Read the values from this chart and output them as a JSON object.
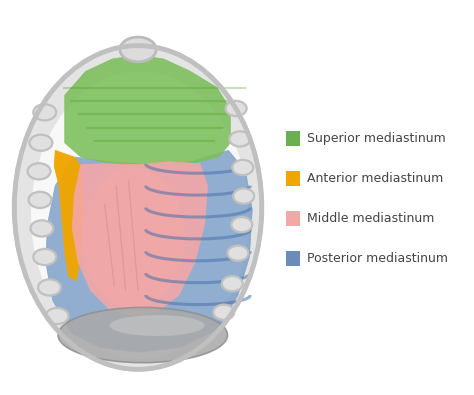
{
  "background_color": "#ffffff",
  "legend_items": [
    {
      "label": "Superior mediastinum",
      "color": "#6ab04c"
    },
    {
      "label": "Anterior mediastinum",
      "color": "#f0a500"
    },
    {
      "label": "Middle mediastinum",
      "color": "#f4a7a7"
    },
    {
      "label": "Posterior mediastinum",
      "color": "#6b8cba"
    }
  ],
  "chest_fill": "#e4e4e4",
  "chest_edge": "#c8c8c8",
  "superior_color": "#7bbf5a",
  "anterior_color": "#f0a500",
  "middle_color": "#f4a7a7",
  "posterior_color": "#7a9ec8",
  "diaphragm_color": "#aaaaaa",
  "rib_fill": "#e0e0e0",
  "rib_edge": "#c0c0c0",
  "text_color": "#444444",
  "figsize": [
    4.74,
    3.95
  ],
  "dpi": 100
}
